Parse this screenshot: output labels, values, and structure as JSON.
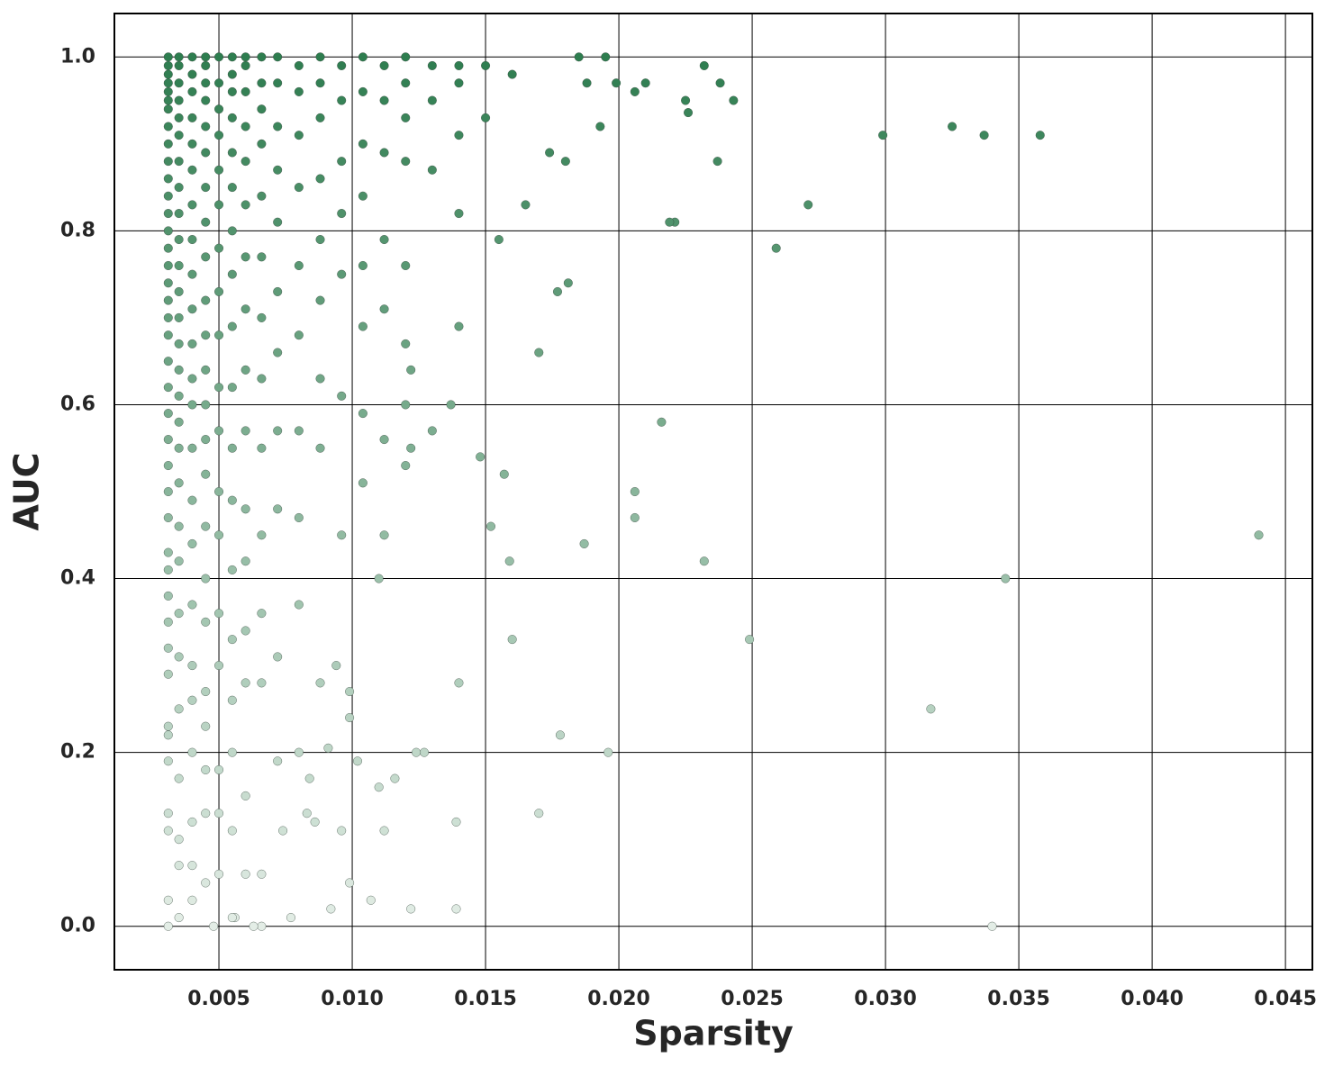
{
  "chart_data": {
    "type": "scatter",
    "x_label": "Sparsity",
    "y_label": "AUC",
    "xlim": [
      0.00108,
      0.04601
    ],
    "ylim": [
      -0.05,
      1.05
    ],
    "xticks": [
      0.005,
      {
        "value": 0.01,
        "label": "0.010"
      },
      0.015,
      {
        "value": 0.02,
        "label": "0.020"
      },
      0.025,
      {
        "value": 0.03,
        "label": "0.030"
      },
      0.035,
      {
        "value": 0.04,
        "label": "0.040"
      },
      0.045
    ],
    "yticks": [
      {
        "value": 0,
        "label": "0.0"
      },
      0.2,
      0.4,
      0.6,
      0.8,
      {
        "value": 1,
        "label": "1.0"
      }
    ],
    "grid": true,
    "color_range": [
      "#e3ede6",
      "#2e7d4f"
    ],
    "x": [
      0.044,
      0.0345,
      0.034,
      0.0317,
      0.0249,
      0.0358,
      0.0337,
      0.0325,
      0.0299,
      0.0271,
      0.0259,
      0.0243,
      0.0237,
      0.0232,
      0.0238,
      0.0226,
      0.0225,
      0.0221,
      0.0219,
      0.0216,
      0.0232,
      0.0206,
      0.0206,
      0.0196,
      0.0187,
      0.0178,
      0.017,
      0.017,
      0.0181,
      0.0177,
      0.0174,
      0.018,
      0.0188,
      0.0193,
      0.021,
      0.0206,
      0.0199,
      0.0185,
      0.0195,
      0.0165,
      0.0159,
      0.016,
      0.0157,
      0.0155,
      0.0152,
      0.0148,
      0.0137,
      0.0139,
      0.0139,
      0.014,
      0.0127,
      0.0124,
      0.0122,
      0.0122,
      0.0122,
      0.012,
      0.013,
      0.011,
      0.0112,
      0.0107,
      0.0116,
      0.011,
      0.0102,
      0.0099,
      0.0099,
      0.0099,
      0.0092,
      0.0094,
      0.0096,
      0.0091,
      0.0086,
      0.0083,
      0.0084,
      0.0077,
      0.0074,
      0.0066,
      0.0063,
      0.0056,
      0.0048,
      0.0031,
      0.0031,
      0.0031,
      0.0031,
      0.0031,
      0.0031,
      0.0031,
      0.0031,
      0.0031,
      0.0031,
      0.0031,
      0.0031,
      0.0031,
      0.0031,
      0.0031,
      0.0031,
      0.0031,
      0.0031,
      0.0031,
      0.0031,
      0.0031,
      0.0031,
      0.0031,
      0.0031,
      0.0031,
      0.0031,
      0.0031,
      0.0031,
      0.0031,
      0.0031,
      0.0031,
      0.0031,
      0.0031,
      0.0031,
      0.0031,
      0.0031,
      0.0031,
      0.0031,
      0.0031,
      0.0031,
      0.0035,
      0.0035,
      0.0035,
      0.0035,
      0.0035,
      0.0035,
      0.0035,
      0.0035,
      0.0035,
      0.0035,
      0.0035,
      0.0035,
      0.0035,
      0.0035,
      0.0035,
      0.0035,
      0.0035,
      0.0035,
      0.0035,
      0.0035,
      0.0035,
      0.0035,
      0.0035,
      0.0035,
      0.0035,
      0.0035,
      0.0035,
      0.0035,
      0.004,
      0.004,
      0.004,
      0.004,
      0.004,
      0.004,
      0.004,
      0.004,
      0.004,
      0.004,
      0.004,
      0.004,
      0.004,
      0.004,
      0.004,
      0.004,
      0.004,
      0.004,
      0.004,
      0.004,
      0.004,
      0.004,
      0.004,
      0.0045,
      0.0045,
      0.0045,
      0.0045,
      0.0045,
      0.0045,
      0.0045,
      0.0045,
      0.0045,
      0.0045,
      0.0045,
      0.0045,
      0.0045,
      0.0045,
      0.0045,
      0.0045,
      0.0045,
      0.0045,
      0.0045,
      0.0045,
      0.0045,
      0.0045,
      0.0045,
      0.005,
      0.005,
      0.005,
      0.005,
      0.005,
      0.005,
      0.005,
      0.005,
      0.005,
      0.005,
      0.005,
      0.005,
      0.005,
      0.005,
      0.005,
      0.005,
      0.005,
      0.005,
      0.0055,
      0.0055,
      0.0055,
      0.0055,
      0.0055,
      0.0055,
      0.0055,
      0.0055,
      0.0055,
      0.0055,
      0.0055,
      0.0055,
      0.0055,
      0.0055,
      0.0055,
      0.0055,
      0.0055,
      0.0055,
      0.006,
      0.006,
      0.006,
      0.006,
      0.006,
      0.006,
      0.006,
      0.006,
      0.006,
      0.006,
      0.006,
      0.006,
      0.006,
      0.006,
      0.006,
      0.006,
      0.0066,
      0.0066,
      0.0066,
      0.0066,
      0.0066,
      0.0066,
      0.0066,
      0.0066,
      0.0066,
      0.0066,
      0.0066,
      0.0066,
      0.0066,
      0.0072,
      0.0072,
      0.0072,
      0.0072,
      0.0072,
      0.0072,
      0.0072,
      0.0072,
      0.0072,
      0.0072,
      0.0072,
      0.008,
      0.008,
      0.008,
      0.008,
      0.008,
      0.008,
      0.008,
      0.008,
      0.008,
      0.008,
      0.0088,
      0.0088,
      0.0088,
      0.0088,
      0.0088,
      0.0088,
      0.0088,
      0.0088,
      0.0088,
      0.0096,
      0.0096,
      0.0096,
      0.0096,
      0.0096,
      0.0096,
      0.0096,
      0.0104,
      0.0104,
      0.0104,
      0.0104,
      0.0104,
      0.0104,
      0.0104,
      0.0104,
      0.0112,
      0.0112,
      0.0112,
      0.0112,
      0.0112,
      0.0112,
      0.0112,
      0.012,
      0.012,
      0.012,
      0.012,
      0.012,
      0.012,
      0.012,
      0.013,
      0.013,
      0.013,
      0.014,
      0.014,
      0.014,
      0.014,
      0.014,
      0.015,
      0.015,
      0.016
    ],
    "values": [
      0.45,
      0.4,
      0,
      0.25,
      0.33,
      0.91,
      0.91,
      0.92,
      0.91,
      0.83,
      0.78,
      0.95,
      0.88,
      0.99,
      0.97,
      0.936,
      0.95,
      0.81,
      0.81,
      0.58,
      0.42,
      0.5,
      0.47,
      0.2,
      0.44,
      0.22,
      0.13,
      0.66,
      0.74,
      0.73,
      0.89,
      0.88,
      0.97,
      0.92,
      0.97,
      0.96,
      0.97,
      1,
      1,
      0.83,
      0.42,
      0.33,
      0.52,
      0.79,
      0.46,
      0.54,
      0.6,
      0.02,
      0.12,
      0.28,
      0.2,
      0.2,
      0.02,
      0.64,
      0.55,
      0.53,
      0.57,
      0.4,
      0.11,
      0.03,
      0.17,
      0.16,
      0.19,
      0.05,
      0.24,
      0.27,
      0.02,
      0.3,
      0.11,
      0.205,
      0.12,
      0.13,
      0.17,
      0.01,
      0.11,
      0,
      0,
      0.01,
      0,
      0,
      0.03,
      0.11,
      0.13,
      0.19,
      0.22,
      0.23,
      0.29,
      0.32,
      0.35,
      0.38,
      0.41,
      0.43,
      0.47,
      0.5,
      0.53,
      0.56,
      0.59,
      0.62,
      0.65,
      0.68,
      0.7,
      0.72,
      0.74,
      0.76,
      0.78,
      0.8,
      0.82,
      0.84,
      0.86,
      0.88,
      0.9,
      0.92,
      0.94,
      0.95,
      0.96,
      0.97,
      0.98,
      0.99,
      1,
      0.01,
      0.07,
      0.1,
      0.17,
      0.25,
      0.31,
      0.36,
      0.42,
      0.46,
      0.51,
      0.55,
      0.58,
      0.61,
      0.64,
      0.67,
      0.7,
      0.73,
      0.76,
      0.79,
      0.82,
      0.85,
      0.88,
      0.91,
      0.93,
      0.95,
      0.97,
      0.99,
      1,
      0.03,
      0.07,
      0.12,
      0.2,
      0.26,
      0.3,
      0.37,
      0.44,
      0.49,
      0.55,
      0.6,
      0.63,
      0.67,
      0.71,
      0.75,
      0.79,
      0.83,
      0.87,
      0.9,
      0.93,
      0.96,
      0.98,
      1,
      0.05,
      0.13,
      0.18,
      0.23,
      0.27,
      0.35,
      0.4,
      0.46,
      0.52,
      0.56,
      0.6,
      0.64,
      0.68,
      0.72,
      0.77,
      0.81,
      0.85,
      0.89,
      0.92,
      0.95,
      0.97,
      0.99,
      1,
      0.06,
      0.13,
      0.18,
      0.3,
      0.36,
      0.45,
      0.5,
      0.57,
      0.62,
      0.68,
      0.73,
      0.78,
      0.83,
      0.87,
      0.91,
      0.94,
      0.97,
      1,
      0.01,
      0.11,
      0.2,
      0.26,
      0.33,
      0.41,
      0.49,
      0.55,
      0.62,
      0.69,
      0.75,
      0.8,
      0.85,
      0.89,
      0.93,
      0.96,
      0.98,
      1,
      0.06,
      0.15,
      0.28,
      0.34,
      0.42,
      0.48,
      0.57,
      0.64,
      0.71,
      0.77,
      0.83,
      0.88,
      0.92,
      0.96,
      0.99,
      1,
      0.06,
      0.28,
      0.36,
      0.45,
      0.55,
      0.63,
      0.7,
      0.77,
      0.84,
      0.9,
      0.94,
      0.97,
      1,
      0.19,
      0.31,
      0.48,
      0.57,
      0.66,
      0.73,
      0.81,
      0.87,
      0.92,
      0.97,
      1,
      0.2,
      0.37,
      0.47,
      0.57,
      0.68,
      0.76,
      0.85,
      0.91,
      0.96,
      0.99,
      0.28,
      0.55,
      0.63,
      0.72,
      0.79,
      0.86,
      0.93,
      0.97,
      1,
      0.45,
      0.61,
      0.75,
      0.82,
      0.88,
      0.95,
      0.99,
      0.51,
      0.59,
      0.69,
      0.76,
      0.84,
      0.9,
      0.96,
      1,
      0.45,
      0.56,
      0.71,
      0.79,
      0.89,
      0.95,
      0.99,
      0.6,
      0.67,
      0.76,
      0.88,
      0.93,
      0.97,
      1,
      0.87,
      0.95,
      0.99,
      0.69,
      0.82,
      0.91,
      0.97,
      0.99,
      0.93,
      0.99,
      0.98
    ]
  }
}
